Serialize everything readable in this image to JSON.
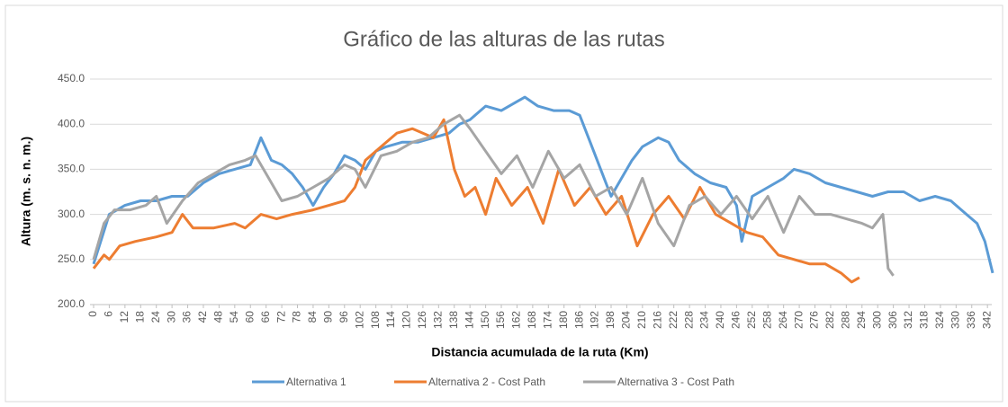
{
  "chart_data": {
    "type": "line",
    "title": "Gráfico de las alturas de las rutas",
    "x_label": "Distancia acumulada de la ruta (Km)",
    "y_label": "Altura (m. s. n. m.)",
    "xlim": [
      0,
      345
    ],
    "ylim": [
      200,
      450
    ],
    "xticks": [
      0,
      6,
      12,
      18,
      24,
      30,
      36,
      42,
      48,
      54,
      60,
      66,
      72,
      78,
      84,
      90,
      96,
      102,
      108,
      114,
      120,
      126,
      132,
      138,
      144,
      150,
      156,
      162,
      168,
      174,
      180,
      186,
      192,
      198,
      204,
      210,
      216,
      222,
      228,
      234,
      240,
      246,
      252,
      258,
      264,
      270,
      276,
      282,
      288,
      294,
      300,
      306,
      312,
      318,
      324,
      330,
      336,
      342
    ],
    "yticks": [
      {
        "value": 200,
        "label": "200.0"
      },
      {
        "value": 250,
        "label": "250.0"
      },
      {
        "value": 300,
        "label": "300.0"
      },
      {
        "value": 350,
        "label": "350.0"
      },
      {
        "value": 400,
        "label": "400.0"
      },
      {
        "value": 450,
        "label": "450.0"
      }
    ],
    "grid": true,
    "legend": "bottom",
    "series": [
      {
        "name": "Alternativa 1",
        "color": "#5b9bd5",
        "x": [
          0,
          6,
          12,
          18,
          24,
          30,
          36,
          42,
          48,
          54,
          60,
          64,
          68,
          72,
          76,
          80,
          84,
          88,
          92,
          96,
          100,
          104,
          108,
          112,
          118,
          124,
          130,
          136,
          140,
          144,
          150,
          156,
          162,
          165,
          170,
          176,
          182,
          186,
          190,
          194,
          198,
          202,
          206,
          210,
          216,
          220,
          224,
          230,
          236,
          242,
          246,
          248,
          252,
          258,
          264,
          268,
          274,
          280,
          286,
          292,
          298,
          304,
          310,
          316,
          322,
          328,
          334,
          338,
          341,
          344
        ],
        "values": [
          245,
          300,
          310,
          315,
          315,
          320,
          320,
          335,
          345,
          350,
          355,
          385,
          360,
          355,
          345,
          330,
          310,
          330,
          345,
          365,
          360,
          350,
          370,
          375,
          380,
          380,
          385,
          390,
          400,
          405,
          420,
          415,
          425,
          430,
          420,
          415,
          415,
          410,
          380,
          350,
          320,
          340,
          360,
          375,
          385,
          380,
          360,
          345,
          335,
          330,
          310,
          270,
          320,
          330,
          340,
          350,
          345,
          335,
          330,
          325,
          320,
          325,
          325,
          315,
          320,
          315,
          300,
          290,
          270,
          235
        ]
      },
      {
        "name": "Alternativa 2 - Cost Path",
        "color": "#ed7d31",
        "x": [
          0,
          4,
          6,
          10,
          16,
          24,
          30,
          34,
          38,
          46,
          54,
          58,
          64,
          70,
          76,
          84,
          90,
          96,
          100,
          104,
          110,
          116,
          122,
          126,
          130,
          134,
          138,
          142,
          146,
          150,
          154,
          160,
          166,
          172,
          178,
          184,
          190,
          196,
          202,
          208,
          214,
          220,
          226,
          232,
          238,
          244,
          250,
          256,
          262,
          268,
          274,
          280,
          286,
          290,
          293
        ],
        "values": [
          240,
          255,
          250,
          265,
          270,
          275,
          280,
          300,
          285,
          285,
          290,
          285,
          300,
          295,
          300,
          305,
          310,
          315,
          330,
          360,
          375,
          390,
          395,
          390,
          385,
          405,
          350,
          320,
          330,
          300,
          340,
          310,
          330,
          290,
          350,
          310,
          330,
          300,
          320,
          265,
          300,
          320,
          295,
          330,
          300,
          290,
          280,
          275,
          255,
          250,
          245,
          245,
          235,
          225,
          230
        ]
      },
      {
        "name": "Alternativa 3 - Cost Path",
        "color": "#a5a5a5",
        "x": [
          0,
          4,
          8,
          14,
          20,
          24,
          28,
          34,
          40,
          46,
          52,
          58,
          62,
          66,
          72,
          78,
          84,
          90,
          96,
          100,
          104,
          110,
          116,
          122,
          128,
          134,
          140,
          144,
          150,
          156,
          162,
          168,
          174,
          180,
          186,
          192,
          198,
          204,
          210,
          216,
          222,
          228,
          234,
          240,
          246,
          252,
          258,
          264,
          270,
          276,
          282,
          288,
          294,
          298,
          302,
          304,
          306
        ],
        "values": [
          250,
          290,
          305,
          305,
          310,
          320,
          290,
          315,
          335,
          345,
          355,
          360,
          365,
          345,
          315,
          320,
          330,
          340,
          355,
          350,
          330,
          365,
          370,
          380,
          385,
          400,
          410,
          395,
          370,
          345,
          365,
          330,
          370,
          340,
          355,
          320,
          330,
          300,
          340,
          290,
          265,
          310,
          320,
          300,
          320,
          295,
          320,
          280,
          320,
          300,
          300,
          295,
          290,
          285,
          300,
          240,
          232
        ]
      }
    ]
  }
}
